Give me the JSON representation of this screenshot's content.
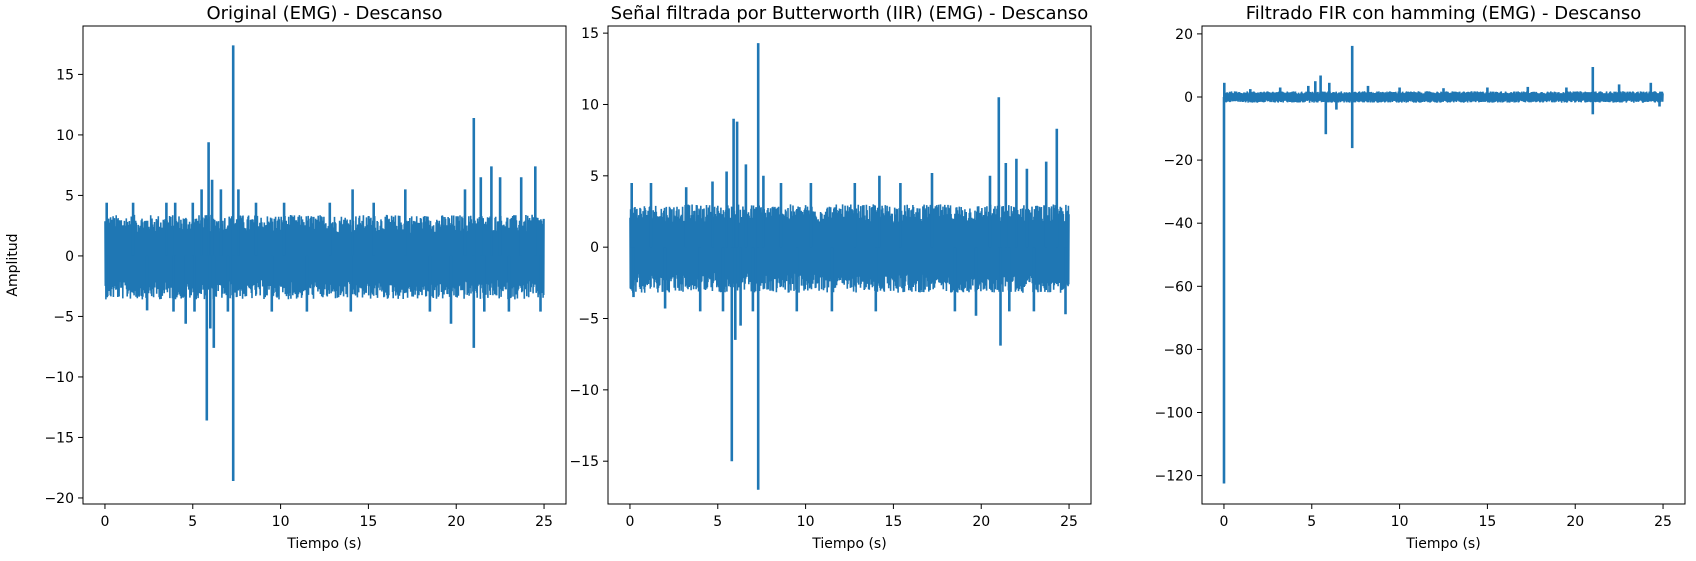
{
  "chart_data": [
    {
      "type": "line",
      "title": "Original (EMG) - Descanso",
      "xlabel": "Tiempo (s)",
      "ylabel": "Amplitud",
      "xlim": [
        -1.25,
        26.25
      ],
      "ylim": [
        -20.5,
        19
      ],
      "xticks": [
        0,
        5,
        10,
        15,
        20,
        25
      ],
      "xtick_labels": [
        "0",
        "5",
        "10",
        "15",
        "20",
        "25"
      ],
      "yticks": [
        -20,
        -15,
        -10,
        -5,
        0,
        5,
        10,
        15
      ],
      "ytick_labels": [
        "−20",
        "−15",
        "−10",
        "−5",
        "0",
        "5",
        "10",
        "15"
      ],
      "grid": false,
      "series": [
        {
          "color": "#1f77b4",
          "x_range": [
            0,
            25
          ],
          "band": [
            -3.6,
            3.4
          ],
          "spikes": [
            {
              "x": 0.1,
              "y": 4.4
            },
            {
              "x": 0.2,
              "y": -2.9
            },
            {
              "x": 1.6,
              "y": 4.4
            },
            {
              "x": 2.4,
              "y": -4.5
            },
            {
              "x": 3.5,
              "y": 4.4
            },
            {
              "x": 3.9,
              "y": -4.6
            },
            {
              "x": 4.0,
              "y": 4.4
            },
            {
              "x": 4.6,
              "y": -5.6
            },
            {
              "x": 5.0,
              "y": 4.4
            },
            {
              "x": 5.1,
              "y": -4.6
            },
            {
              "x": 5.5,
              "y": 5.5
            },
            {
              "x": 5.8,
              "y": -13.6
            },
            {
              "x": 5.9,
              "y": 9.4
            },
            {
              "x": 6.0,
              "y": -6.0
            },
            {
              "x": 6.1,
              "y": 6.3
            },
            {
              "x": 6.2,
              "y": -7.6
            },
            {
              "x": 6.6,
              "y": 5.5
            },
            {
              "x": 7.0,
              "y": -4.6
            },
            {
              "x": 7.3,
              "y": 17.4
            },
            {
              "x": 7.3,
              "y": -18.6
            },
            {
              "x": 7.6,
              "y": 5.5
            },
            {
              "x": 8.6,
              "y": 4.4
            },
            {
              "x": 9.5,
              "y": -4.6
            },
            {
              "x": 10.2,
              "y": 4.4
            },
            {
              "x": 11.5,
              "y": -4.6
            },
            {
              "x": 12.8,
              "y": 4.4
            },
            {
              "x": 14.0,
              "y": -4.6
            },
            {
              "x": 14.1,
              "y": 5.5
            },
            {
              "x": 15.3,
              "y": 4.4
            },
            {
              "x": 17.1,
              "y": 5.5
            },
            {
              "x": 18.5,
              "y": -4.6
            },
            {
              "x": 19.7,
              "y": -5.6
            },
            {
              "x": 20.5,
              "y": 5.5
            },
            {
              "x": 21.0,
              "y": 11.4
            },
            {
              "x": 21.0,
              "y": -7.6
            },
            {
              "x": 21.4,
              "y": 6.5
            },
            {
              "x": 21.6,
              "y": -4.6
            },
            {
              "x": 22.0,
              "y": 7.4
            },
            {
              "x": 22.5,
              "y": 6.5
            },
            {
              "x": 23.0,
              "y": -4.6
            },
            {
              "x": 23.7,
              "y": 6.5
            },
            {
              "x": 24.5,
              "y": 7.4
            },
            {
              "x": 24.8,
              "y": -4.6
            }
          ]
        }
      ]
    },
    {
      "type": "line",
      "title": "Señal filtrada por Butterworth (IIR) (EMG) - Descanso",
      "xlabel": "Tiempo (s)",
      "ylabel": "",
      "xlim": [
        -1.25,
        26.25
      ],
      "ylim": [
        -18,
        15.5
      ],
      "xticks": [
        0,
        5,
        10,
        15,
        20,
        25
      ],
      "xtick_labels": [
        "0",
        "5",
        "10",
        "15",
        "20",
        "25"
      ],
      "yticks": [
        -15,
        -10,
        -5,
        0,
        5,
        10,
        15
      ],
      "ytick_labels": [
        "−15",
        "−10",
        "−5",
        "0",
        "5",
        "10",
        "15"
      ],
      "grid": false,
      "series": [
        {
          "color": "#1f77b4",
          "x_range": [
            0,
            25
          ],
          "band": [
            -3.2,
            3.0
          ],
          "spikes": [
            {
              "x": 0.1,
              "y": 4.5
            },
            {
              "x": 0.2,
              "y": -3.5
            },
            {
              "x": 1.2,
              "y": 4.5
            },
            {
              "x": 2.0,
              "y": -4.3
            },
            {
              "x": 3.2,
              "y": 4.2
            },
            {
              "x": 4.0,
              "y": -4.5
            },
            {
              "x": 4.7,
              "y": 4.6
            },
            {
              "x": 5.3,
              "y": -4.5
            },
            {
              "x": 5.5,
              "y": 5.3
            },
            {
              "x": 5.8,
              "y": -15.0
            },
            {
              "x": 5.9,
              "y": 9.0
            },
            {
              "x": 6.0,
              "y": -6.5
            },
            {
              "x": 6.1,
              "y": 8.8
            },
            {
              "x": 6.3,
              "y": -5.5
            },
            {
              "x": 6.6,
              "y": 5.8
            },
            {
              "x": 7.0,
              "y": -4.5
            },
            {
              "x": 7.3,
              "y": 14.3
            },
            {
              "x": 7.3,
              "y": -17.0
            },
            {
              "x": 7.6,
              "y": 5.0
            },
            {
              "x": 8.6,
              "y": 4.5
            },
            {
              "x": 9.5,
              "y": -4.5
            },
            {
              "x": 10.3,
              "y": 4.5
            },
            {
              "x": 11.5,
              "y": -4.5
            },
            {
              "x": 12.8,
              "y": 4.5
            },
            {
              "x": 14.0,
              "y": -4.5
            },
            {
              "x": 14.2,
              "y": 5.0
            },
            {
              "x": 15.4,
              "y": 4.5
            },
            {
              "x": 17.2,
              "y": 5.2
            },
            {
              "x": 18.5,
              "y": -4.5
            },
            {
              "x": 19.7,
              "y": -4.8
            },
            {
              "x": 20.5,
              "y": 5.0
            },
            {
              "x": 21.0,
              "y": 10.5
            },
            {
              "x": 21.1,
              "y": -6.9
            },
            {
              "x": 21.4,
              "y": 5.9
            },
            {
              "x": 21.6,
              "y": -4.5
            },
            {
              "x": 22.0,
              "y": 6.2
            },
            {
              "x": 22.6,
              "y": 5.5
            },
            {
              "x": 23.0,
              "y": -4.5
            },
            {
              "x": 23.7,
              "y": 6.0
            },
            {
              "x": 24.3,
              "y": 8.3
            },
            {
              "x": 24.8,
              "y": -4.7
            }
          ]
        }
      ]
    },
    {
      "type": "line",
      "title": "Filtrado FIR con hamming (EMG) - Descanso",
      "xlabel": "Tiempo (s)",
      "ylabel": "",
      "xlim": [
        -1.25,
        26.25
      ],
      "ylim": [
        -129,
        22.5
      ],
      "xticks": [
        0,
        5,
        10,
        15,
        20,
        25
      ],
      "xtick_labels": [
        "0",
        "5",
        "10",
        "15",
        "20",
        "25"
      ],
      "yticks": [
        -120,
        -100,
        -80,
        -60,
        -40,
        -20,
        0,
        20
      ],
      "ytick_labels": [
        "−120",
        "−100",
        "−80",
        "−60",
        "−40",
        "−20",
        "0",
        "20"
      ],
      "grid": false,
      "series": [
        {
          "color": "#1f77b4",
          "x_range": [
            0,
            25
          ],
          "band": [
            -1.8,
            1.8
          ],
          "spikes": [
            {
              "x": 0.0,
              "y": -122.5
            },
            {
              "x": 0.02,
              "y": 4.5
            },
            {
              "x": 1.5,
              "y": 2.5
            },
            {
              "x": 3.2,
              "y": 3.0
            },
            {
              "x": 4.8,
              "y": 3.5
            },
            {
              "x": 5.2,
              "y": 5.0
            },
            {
              "x": 5.5,
              "y": 6.8
            },
            {
              "x": 5.8,
              "y": -11.8
            },
            {
              "x": 6.0,
              "y": 4.5
            },
            {
              "x": 6.4,
              "y": -4.0
            },
            {
              "x": 7.3,
              "y": 16.2
            },
            {
              "x": 7.3,
              "y": -16.2
            },
            {
              "x": 8.2,
              "y": 3.5
            },
            {
              "x": 10.0,
              "y": 3.0
            },
            {
              "x": 12.5,
              "y": 2.8
            },
            {
              "x": 15.0,
              "y": 3.0
            },
            {
              "x": 17.3,
              "y": 3.2
            },
            {
              "x": 19.5,
              "y": 3.0
            },
            {
              "x": 21.0,
              "y": 9.5
            },
            {
              "x": 21.0,
              "y": -5.5
            },
            {
              "x": 22.5,
              "y": 4.0
            },
            {
              "x": 24.3,
              "y": 4.5
            },
            {
              "x": 24.8,
              "y": -3.0
            }
          ]
        }
      ]
    }
  ]
}
